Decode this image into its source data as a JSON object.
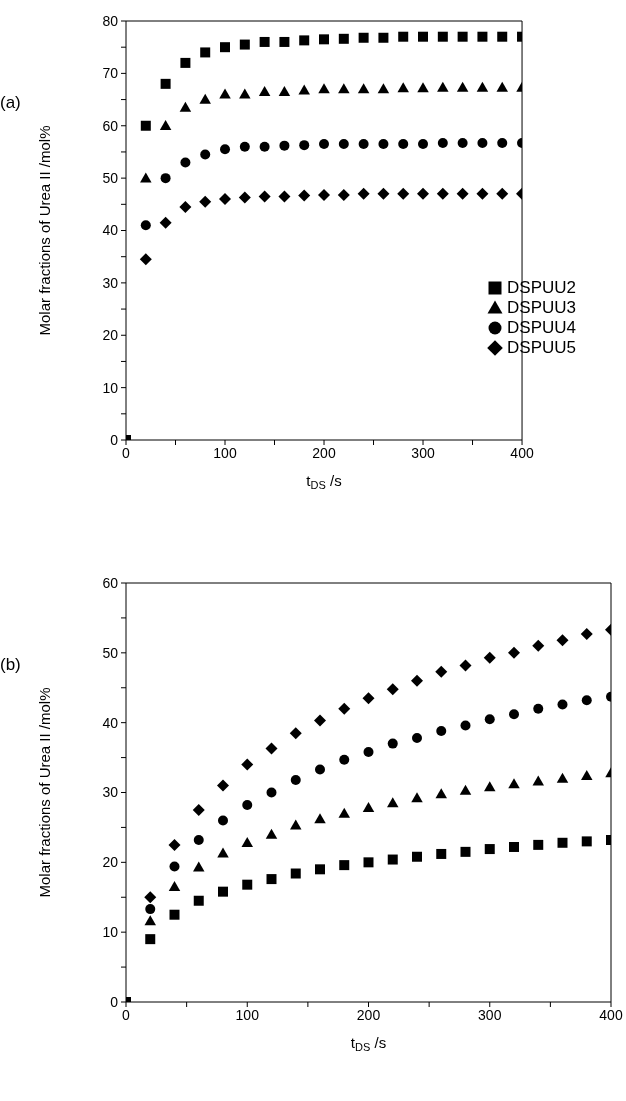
{
  "chart_data": [
    {
      "type": "scatter",
      "title": "(a)",
      "xlabel": "t$_{DS}$ /s",
      "ylabel": "Molar fractions of Urea II /mol%",
      "x": [
        0,
        20,
        40,
        60,
        80,
        100,
        120,
        140,
        160,
        180,
        200,
        220,
        240,
        260,
        280,
        300,
        320,
        340,
        360,
        380,
        400
      ],
      "xlim": [
        0,
        400
      ],
      "ylim": [
        0,
        80
      ],
      "xticks": [
        0,
        {
          "value": 50,
          "label": null
        },
        100,
        {
          "value": 150,
          "label": null
        },
        200,
        {
          "value": 250,
          "label": null
        },
        300,
        {
          "value": 350,
          "label": null
        },
        400
      ],
      "yticks": [
        0,
        {
          "value": 5,
          "label": null
        },
        10,
        {
          "value": 15,
          "label": null
        },
        20,
        {
          "value": 25,
          "label": null
        },
        30,
        {
          "value": 35,
          "label": null
        },
        40,
        {
          "value": 45,
          "label": null
        },
        50,
        {
          "value": 55,
          "label": null
        },
        60,
        {
          "value": 65,
          "label": null
        },
        70,
        {
          "value": 75,
          "label": null
        },
        80
      ],
      "grid": false,
      "legend": "bottom right",
      "series": [
        {
          "name": "DSPUU2",
          "color": "#000000",
          "marker": "square",
          "values": [
            0,
            60,
            68,
            72,
            74,
            75,
            75.5,
            76,
            76,
            76.3,
            76.5,
            76.6,
            76.8,
            76.8,
            77,
            77,
            77,
            77,
            77,
            77,
            77
          ]
        },
        {
          "name": "DSPUU3",
          "color": "#000000",
          "marker": "triangle",
          "values": [
            null,
            50,
            60,
            63.5,
            65,
            66,
            66,
            66.5,
            66.5,
            66.8,
            67,
            67,
            67,
            67,
            67.2,
            67.2,
            67.3,
            67.3,
            67.3,
            67.3,
            67.3
          ]
        },
        {
          "name": "DSPUU4",
          "color": "#000000",
          "marker": "circle",
          "values": [
            null,
            41,
            50,
            53,
            54.5,
            55.5,
            56,
            56,
            56.2,
            56.3,
            56.5,
            56.5,
            56.5,
            56.5,
            56.5,
            56.5,
            56.7,
            56.7,
            56.7,
            56.7,
            56.7
          ]
        },
        {
          "name": "DSPUU5",
          "color": "#000000",
          "marker": "diamond",
          "values": [
            null,
            34.5,
            41.5,
            44.5,
            45.5,
            46,
            46.3,
            46.5,
            46.5,
            46.7,
            46.8,
            46.8,
            47,
            47,
            47,
            47,
            47,
            47,
            47,
            47,
            47
          ]
        }
      ]
    },
    {
      "type": "scatter",
      "title": "(b)",
      "xlabel": "t$_{DS}$ /s",
      "ylabel": "Molar fractions of Urea II /mol%",
      "x": [
        0,
        20,
        40,
        60,
        80,
        100,
        120,
        140,
        160,
        180,
        200,
        220,
        240,
        260,
        280,
        300,
        320,
        340,
        360,
        380,
        400
      ],
      "xlim": [
        0,
        400
      ],
      "ylim": [
        0,
        60
      ],
      "xticks": [
        0,
        {
          "value": 50,
          "label": null
        },
        100,
        {
          "value": 150,
          "label": null
        },
        200,
        {
          "value": 250,
          "label": null
        },
        300,
        {
          "value": 350,
          "label": null
        },
        400
      ],
      "yticks": [
        0,
        {
          "value": 5,
          "label": null
        },
        10,
        {
          "value": 15,
          "label": null
        },
        20,
        {
          "value": 25,
          "label": null
        },
        30,
        {
          "value": 35,
          "label": null
        },
        40,
        {
          "value": 45,
          "label": null
        },
        50,
        {
          "value": 55,
          "label": null
        },
        60
      ],
      "grid": false,
      "legend": false,
      "series": [
        {
          "color": "#000000",
          "marker": "square",
          "values": [
            0,
            9,
            12.5,
            14.5,
            15.8,
            16.8,
            17.6,
            18.4,
            19,
            19.6,
            20,
            20.4,
            20.8,
            21.2,
            21.5,
            21.9,
            22.2,
            22.5,
            22.8,
            23,
            23.2
          ]
        },
        {
          "color": "#000000",
          "marker": "triangle",
          "values": [
            null,
            11.6,
            16.5,
            19.3,
            21.3,
            22.8,
            24,
            25.3,
            26.2,
            27,
            27.8,
            28.5,
            29.2,
            29.8,
            30.3,
            30.8,
            31.2,
            31.6,
            32,
            32.4,
            32.8
          ]
        },
        {
          "color": "#000000",
          "marker": "circle",
          "values": [
            null,
            13.3,
            19.4,
            23.2,
            26,
            28.2,
            30,
            31.8,
            33.3,
            34.7,
            35.8,
            37,
            37.8,
            38.8,
            39.6,
            40.5,
            41.2,
            42,
            42.6,
            43.2,
            43.7
          ]
        },
        {
          "color": "#000000",
          "marker": "diamond",
          "values": [
            null,
            15,
            22.5,
            27.5,
            31,
            34,
            36.3,
            38.5,
            40.3,
            42,
            43.5,
            44.8,
            46,
            47.3,
            48.2,
            49.3,
            50,
            51,
            51.8,
            52.7,
            53.3
          ]
        }
      ]
    }
  ]
}
